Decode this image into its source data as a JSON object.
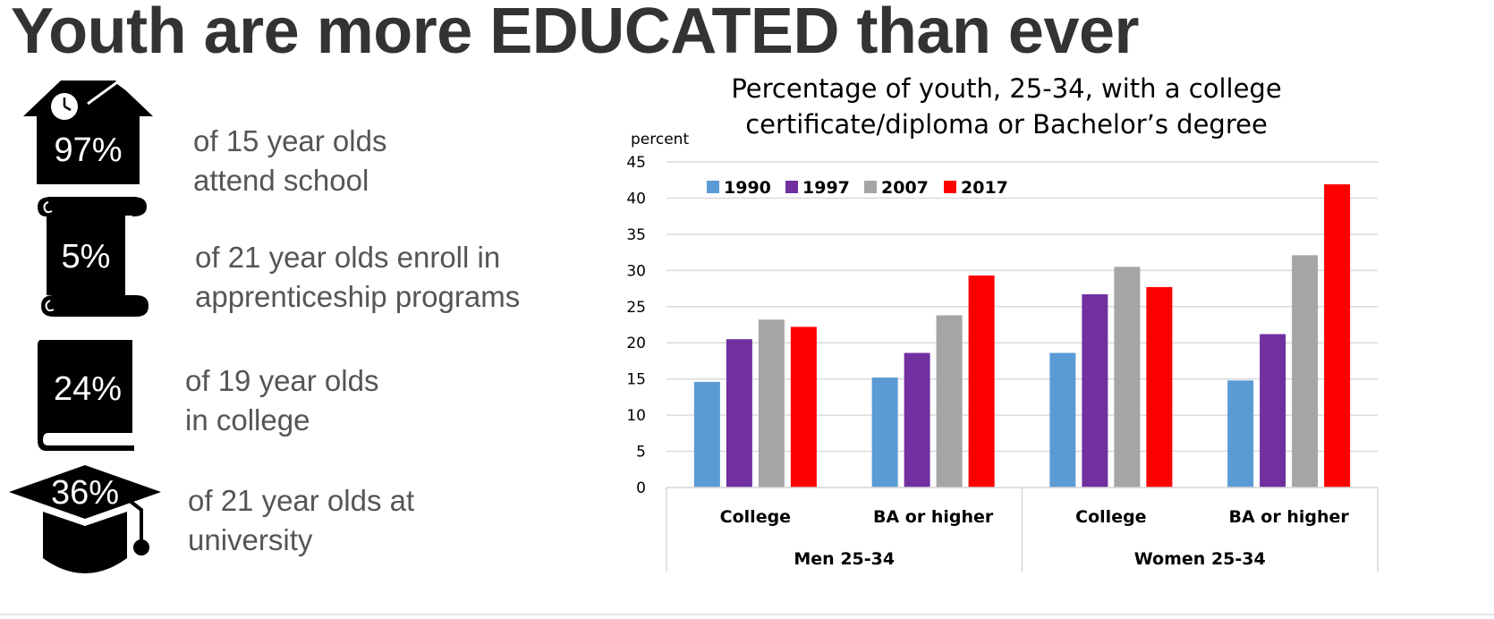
{
  "title": "Youth are more EDUCATED than ever",
  "stats": [
    {
      "percent": "97%",
      "line1": "of 15 year olds",
      "line2": "attend school",
      "icon": "school-house-clock-icon"
    },
    {
      "percent": "5%",
      "line1": "of 21 year olds enroll in",
      "line2": "apprenticeship programs",
      "icon": "diploma-scroll-icon"
    },
    {
      "percent": "24%",
      "line1": "of 19 year olds",
      "line2": "in college",
      "icon": "book-icon"
    },
    {
      "percent": "36%",
      "line1": "of 21 year olds at",
      "line2": "university",
      "icon": "graduation-cap-icon"
    }
  ],
  "colors": {
    "icon": "#000000",
    "1990": "#5b9bd5",
    "1997": "#7030a0",
    "2007": "#a5a5a5",
    "2017": "#ff0000"
  },
  "chart_data": {
    "type": "bar",
    "title_lines": [
      "Percentage of youth, 25-34, with a college",
      "certificate/diploma or Bachelor’s degree"
    ],
    "ylabel": "percent",
    "ylim": [
      0,
      45
    ],
    "yticks": [
      0,
      5,
      10,
      15,
      20,
      25,
      30,
      35,
      40,
      45
    ],
    "grid": true,
    "legend_position": "top-left",
    "groups": [
      "Men 25-34",
      "Women 25-34"
    ],
    "categories": [
      "College",
      "BA or higher",
      "College",
      "BA or higher"
    ],
    "series": [
      {
        "name": "1990",
        "color": "#5b9bd5",
        "values": [
          14.6,
          15.2,
          18.6,
          14.8
        ]
      },
      {
        "name": "1997",
        "color": "#7030a0",
        "values": [
          20.5,
          18.6,
          26.7,
          21.2
        ]
      },
      {
        "name": "2007",
        "color": "#a5a5a5",
        "values": [
          23.2,
          23.8,
          30.5,
          32.1
        ]
      },
      {
        "name": "2017",
        "color": "#ff0000",
        "values": [
          22.2,
          29.3,
          27.7,
          41.9
        ]
      }
    ]
  }
}
